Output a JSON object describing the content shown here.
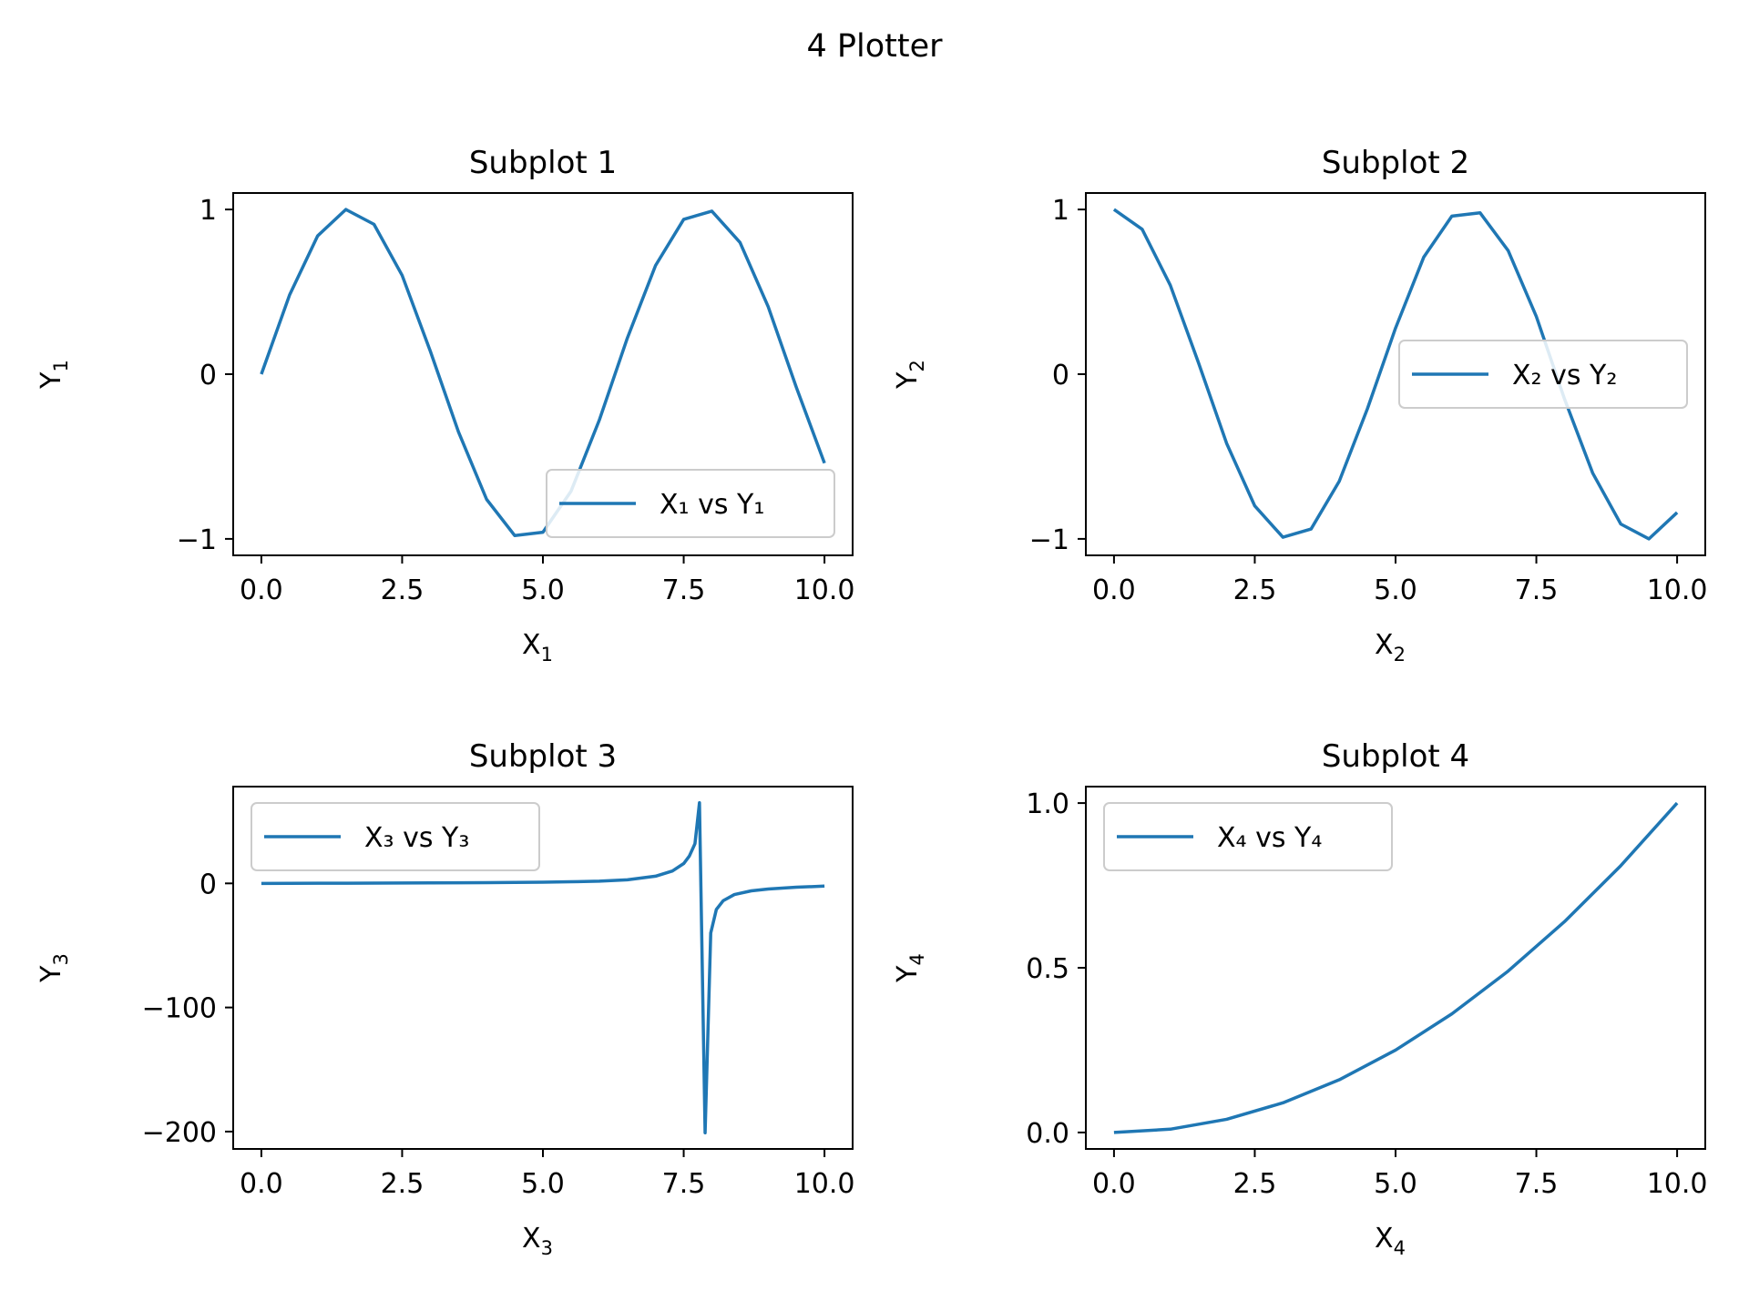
{
  "figure": {
    "title": "4 Plotter",
    "line_color": "#1f77b4"
  },
  "chart_data": [
    {
      "type": "line",
      "title": "Subplot 1",
      "xlabel": "X",
      "xlabel_sub": "1",
      "ylabel": "Y",
      "ylabel_sub": "1",
      "xlim": [
        -0.5,
        10.5
      ],
      "ylim": [
        -1.1,
        1.1
      ],
      "xticks": [
        0,
        2.5,
        5,
        7.5,
        10
      ],
      "xtick_labels": [
        "0.0",
        "2.5",
        "5.0",
        "7.5",
        "10.0"
      ],
      "yticks": [
        -1,
        0,
        1
      ],
      "ytick_labels": [
        "−1",
        "0",
        "1"
      ],
      "legend_position": "lower right",
      "grid": false,
      "series": [
        {
          "name": "X₁ vs Y₁",
          "x": [
            0,
            0.5,
            1,
            1.5,
            2,
            2.5,
            3,
            3.5,
            4,
            4.5,
            5,
            5.5,
            6,
            6.5,
            7,
            7.5,
            8,
            8.5,
            9,
            9.5,
            10
          ],
          "y": [
            0,
            0.48,
            0.84,
            1.0,
            0.91,
            0.6,
            0.14,
            -0.35,
            -0.76,
            -0.98,
            -0.96,
            -0.71,
            -0.28,
            0.22,
            0.66,
            0.94,
            0.99,
            0.8,
            0.41,
            -0.08,
            -0.54
          ]
        }
      ]
    },
    {
      "type": "line",
      "title": "Subplot 2",
      "xlabel": "X",
      "xlabel_sub": "2",
      "ylabel": "Y",
      "ylabel_sub": "2",
      "xlim": [
        -0.5,
        10.5
      ],
      "ylim": [
        -1.1,
        1.1
      ],
      "xticks": [
        0,
        2.5,
        5,
        7.5,
        10
      ],
      "xtick_labels": [
        "0.0",
        "2.5",
        "5.0",
        "7.5",
        "10.0"
      ],
      "yticks": [
        -1,
        0,
        1
      ],
      "ytick_labels": [
        "−1",
        "0",
        "1"
      ],
      "legend_position": "center right",
      "grid": false,
      "series": [
        {
          "name": "X₂ vs Y₂",
          "x": [
            0,
            0.5,
            1,
            1.5,
            2,
            2.5,
            3,
            3.5,
            4,
            4.5,
            5,
            5.5,
            6,
            6.5,
            7,
            7.5,
            8,
            8.5,
            9,
            9.5,
            10
          ],
          "y": [
            1.0,
            0.88,
            0.54,
            0.07,
            -0.42,
            -0.8,
            -0.99,
            -0.94,
            -0.65,
            -0.21,
            0.28,
            0.71,
            0.96,
            0.98,
            0.75,
            0.35,
            -0.15,
            -0.6,
            -0.91,
            -1.0,
            -0.84
          ]
        }
      ]
    },
    {
      "type": "line",
      "title": "Subplot 3",
      "xlabel": "X",
      "xlabel_sub": "3",
      "ylabel": "Y",
      "ylabel_sub": "3",
      "xlim": [
        -0.5,
        10.5
      ],
      "ylim": [
        -214,
        78
      ],
      "xticks": [
        0,
        2.5,
        5,
        7.5,
        10
      ],
      "xtick_labels": [
        "0.0",
        "2.5",
        "5.0",
        "7.5",
        "10.0"
      ],
      "yticks": [
        -200,
        -100,
        0
      ],
      "ytick_labels": [
        "−200",
        "−100",
        "0"
      ],
      "legend_position": "upper left",
      "grid": false,
      "series": [
        {
          "name": "X₃ vs Y₃",
          "x": [
            0,
            1,
            2,
            3,
            4,
            5,
            5.5,
            6,
            6.5,
            7,
            7.3,
            7.5,
            7.6,
            7.7,
            7.78,
            7.88,
            7.98,
            8.08,
            8.2,
            8.4,
            8.7,
            9,
            9.5,
            10
          ],
          "y": [
            0,
            0.1,
            0.22,
            0.38,
            0.6,
            0.95,
            1.3,
            1.8,
            2.9,
            5.8,
            10,
            16,
            22,
            32,
            65,
            -201,
            -40,
            -21,
            -14,
            -9,
            -6,
            -4.5,
            -3.1,
            -2.2
          ]
        }
      ]
    },
    {
      "type": "line",
      "title": "Subplot 4",
      "xlabel": "X",
      "xlabel_sub": "4",
      "ylabel": "Y",
      "ylabel_sub": "4",
      "xlim": [
        -0.5,
        10.5
      ],
      "ylim": [
        -0.05,
        1.05
      ],
      "xticks": [
        0,
        2.5,
        5,
        7.5,
        10
      ],
      "xtick_labels": [
        "0.0",
        "2.5",
        "5.0",
        "7.5",
        "10.0"
      ],
      "yticks": [
        0,
        0.5,
        1.0
      ],
      "ytick_labels": [
        "0.0",
        "0.5",
        "1.0"
      ],
      "legend_position": "upper left",
      "grid": false,
      "series": [
        {
          "name": "X₄ vs Y₄",
          "x": [
            0,
            1,
            2,
            3,
            4,
            5,
            6,
            7,
            8,
            9,
            10
          ],
          "y": [
            0,
            0.01,
            0.04,
            0.09,
            0.16,
            0.25,
            0.36,
            0.49,
            0.64,
            0.81,
            1.0
          ]
        }
      ]
    }
  ]
}
